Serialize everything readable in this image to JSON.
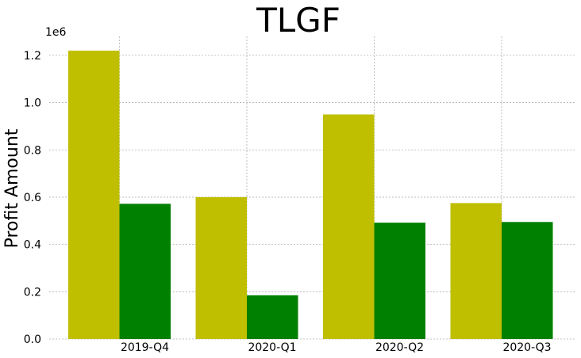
{
  "chart_data": {
    "type": "bar",
    "title": "TLGF",
    "xlabel": "",
    "ylabel": "Profit Amount",
    "y_offset_label": "1e6",
    "categories": [
      "2019-Q4",
      "2020-Q1",
      "2020-Q2",
      "2020-Q3"
    ],
    "series": [
      {
        "values": [
          1220000,
          600000,
          950000,
          575000
        ],
        "color": "#bfbf00"
      },
      {
        "values": [
          572000,
          185000,
          492000,
          495000
        ],
        "color": "#008000"
      }
    ],
    "ylim": [
      0,
      1280000
    ],
    "yticks": [
      0,
      200000,
      400000,
      600000,
      800000,
      1000000,
      1200000
    ],
    "ytick_labels": [
      "0.0",
      "0.2",
      "0.4",
      "0.6",
      "0.8",
      "1.0",
      "1.2"
    ],
    "grid": true,
    "legend": "none"
  }
}
